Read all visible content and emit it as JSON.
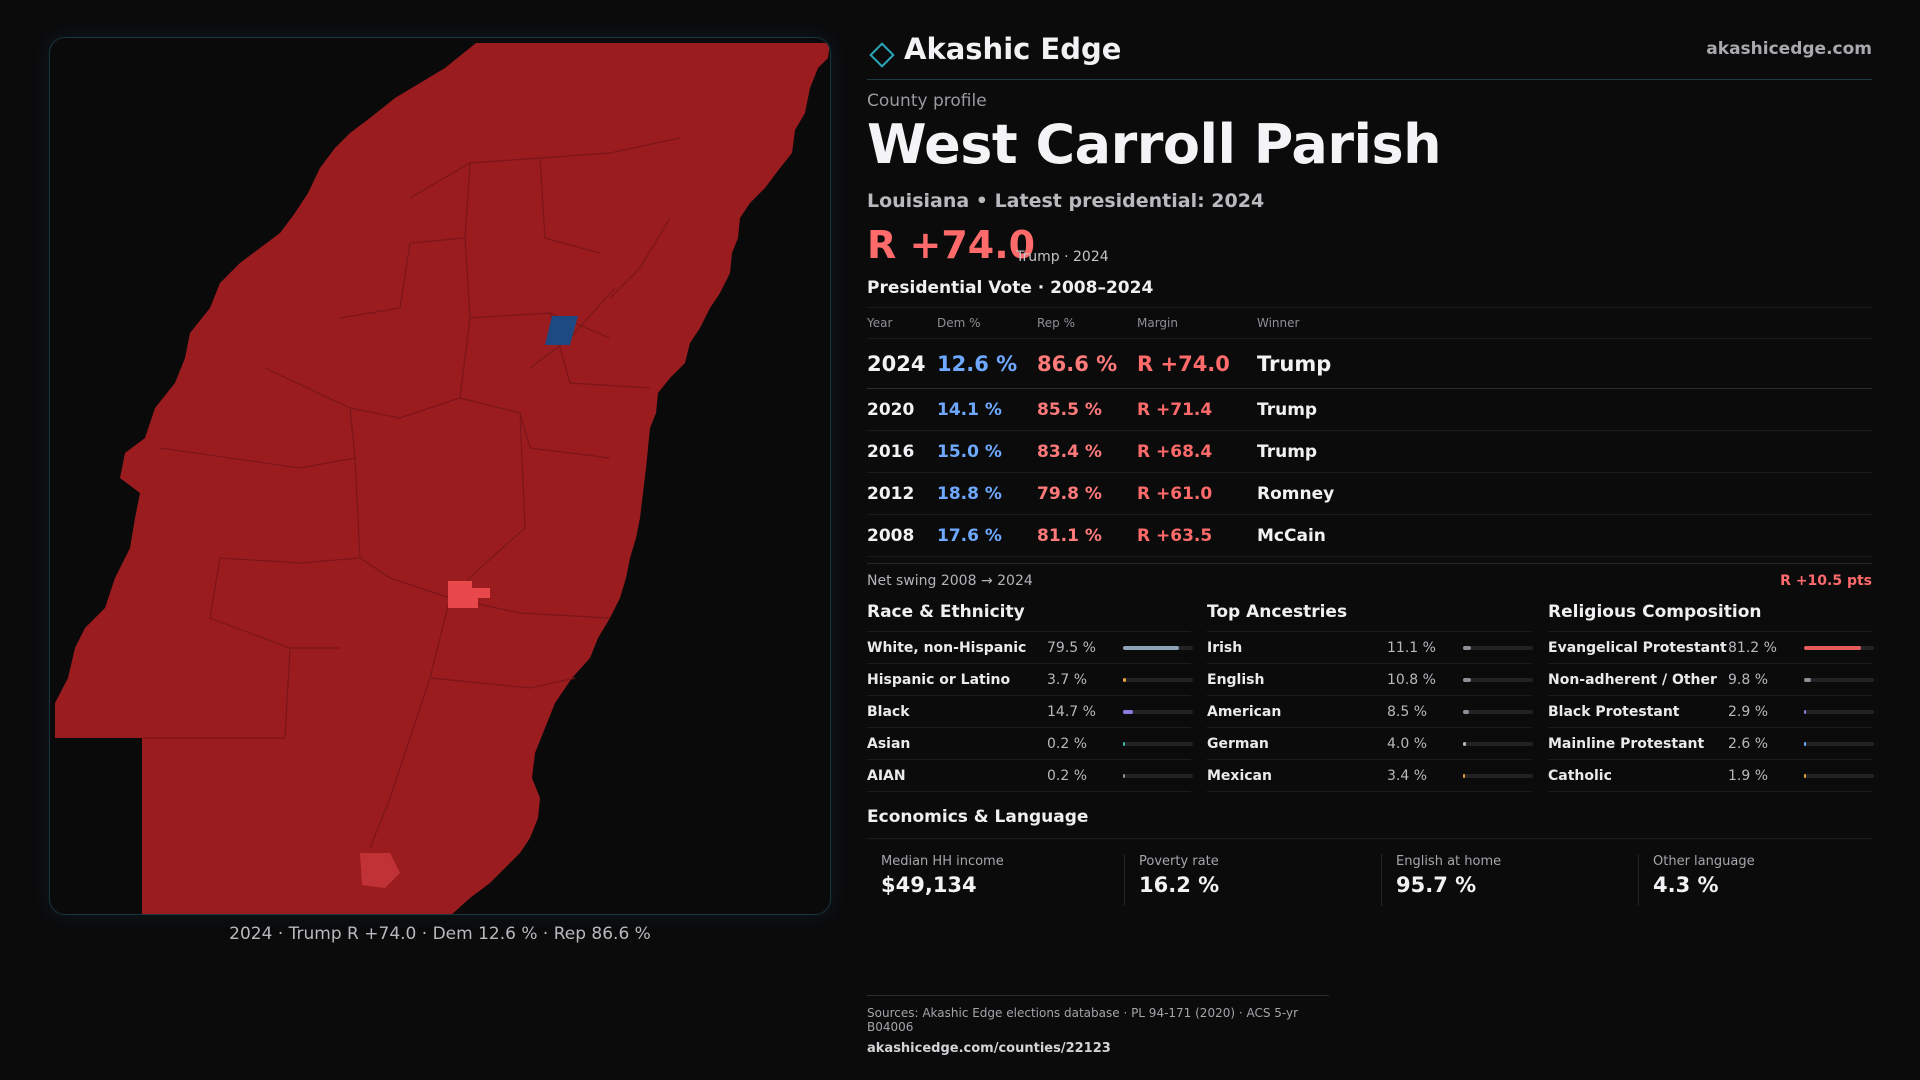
{
  "brand": {
    "name": "Akashic Edge",
    "url": "akashicedge.com"
  },
  "profile": {
    "kicker": "County profile",
    "title": "West Carroll Parish",
    "subtitle": "Louisiana • Latest presidential: 2024",
    "margin": "R +74.0",
    "margin_note": "Trump · 2024"
  },
  "map": {
    "caption": "2024 · Trump R +74.0 · Dem 12.6 % · Rep 86.6 %",
    "colors": {
      "rep_base": "#9b1c1f",
      "rep_strong": "#e8484a",
      "dem": "#1d4a82",
      "border": "#7a1619"
    }
  },
  "vote": {
    "title": "Presidential Vote · 2008–2024",
    "headers": {
      "year": "Year",
      "dem": "Dem %",
      "rep": "Rep %",
      "margin": "Margin",
      "winner": "Winner"
    },
    "rows": [
      {
        "year": "2024",
        "dem": "12.6 %",
        "rep": "86.6 %",
        "margin": "R +74.0",
        "winner": "Trump"
      },
      {
        "year": "2020",
        "dem": "14.1 %",
        "rep": "85.5 %",
        "margin": "R +71.4",
        "winner": "Trump"
      },
      {
        "year": "2016",
        "dem": "15.0 %",
        "rep": "83.4 %",
        "margin": "R +68.4",
        "winner": "Trump"
      },
      {
        "year": "2012",
        "dem": "18.8 %",
        "rep": "79.8 %",
        "margin": "R +61.0",
        "winner": "Romney"
      },
      {
        "year": "2008",
        "dem": "17.6 %",
        "rep": "81.1 %",
        "margin": "R +63.5",
        "winner": "McCain"
      }
    ],
    "swing_label": "Net swing 2008 → 2024",
    "swing_value": "R +10.5 pts"
  },
  "race": {
    "title": "Race & Ethnicity",
    "items": [
      {
        "label": "White, non-Hispanic",
        "value": "79.5 %",
        "pct": 79.5,
        "color": "#8ea3b6"
      },
      {
        "label": "Hispanic or Latino",
        "value": "3.7 %",
        "pct": 3.7,
        "color": "#e0a23a"
      },
      {
        "label": "Black",
        "value": "14.7 %",
        "pct": 14.7,
        "color": "#8f7be0"
      },
      {
        "label": "Asian",
        "value": "0.2 %",
        "pct": 0.2,
        "color": "#3fb9a4"
      },
      {
        "label": "AIAN",
        "value": "0.2 %",
        "pct": 0.2,
        "color": "#8e8e94"
      }
    ]
  },
  "ancestry": {
    "title": "Top Ancestries",
    "items": [
      {
        "label": "Irish",
        "value": "11.1 %",
        "pct": 11.1,
        "color": "#8e8e94"
      },
      {
        "label": "English",
        "value": "10.8 %",
        "pct": 10.8,
        "color": "#8e8e94"
      },
      {
        "label": "American",
        "value": "8.5 %",
        "pct": 8.5,
        "color": "#8e8e94"
      },
      {
        "label": "German",
        "value": "4.0 %",
        "pct": 4.0,
        "color": "#b8b8bd"
      },
      {
        "label": "Mexican",
        "value": "3.4 %",
        "pct": 3.4,
        "color": "#e0a23a"
      }
    ]
  },
  "religion": {
    "title": "Religious Composition",
    "items": [
      {
        "label": "Evangelical Protestant",
        "value": "81.2 %",
        "pct": 81.2,
        "color": "#e35b5b"
      },
      {
        "label": "Non-adherent / Other",
        "value": "9.8 %",
        "pct": 9.8,
        "color": "#8e8e94"
      },
      {
        "label": "Black Protestant",
        "value": "2.9 %",
        "pct": 2.9,
        "color": "#8f7be0"
      },
      {
        "label": "Mainline Protestant",
        "value": "2.6 %",
        "pct": 2.6,
        "color": "#6ea9ff"
      },
      {
        "label": "Catholic",
        "value": "1.9 %",
        "pct": 1.9,
        "color": "#e0a23a"
      }
    ]
  },
  "economics": {
    "title": "Economics & Language",
    "items": [
      {
        "label": "Median HH income",
        "value": "$49,134"
      },
      {
        "label": "Poverty rate",
        "value": "16.2 %"
      },
      {
        "label": "English at home",
        "value": "95.7 %"
      },
      {
        "label": "Other language",
        "value": "4.3 %"
      }
    ]
  },
  "sources": {
    "text": "Sources: Akashic Edge elections database · PL 94-171 (2020) · ACS 5-yr B04006",
    "url": "akashicedge.com/counties/22123"
  }
}
